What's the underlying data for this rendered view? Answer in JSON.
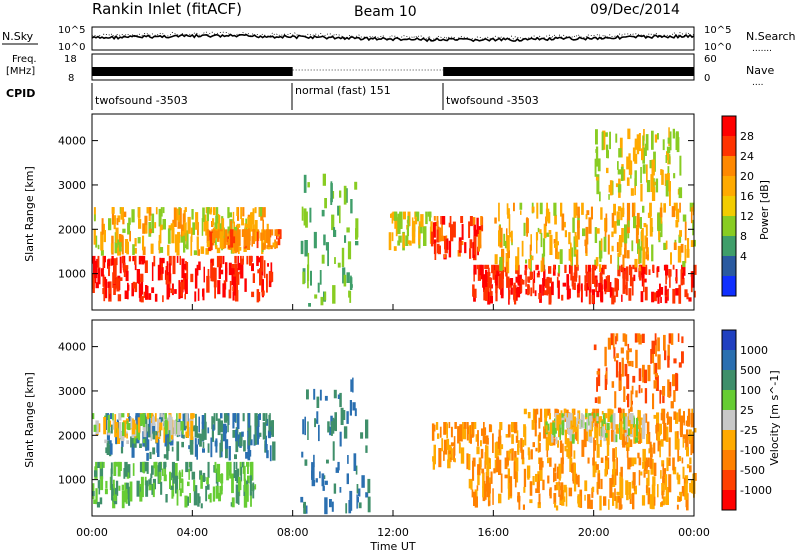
{
  "header": {
    "station": "Rankin Inlet (fitACF)",
    "beam": "Beam 10",
    "date": "09/Dec/2014"
  },
  "summary": {
    "nsky_label": "N.Sky",
    "nsearch_label": "N.Search",
    "nsearch_legend": ".......",
    "freq_label_line1": "Freq.",
    "freq_label_line2": "[MHz]",
    "nave_label": "Nave",
    "nave_legend": "....",
    "cpid_label": "CPID",
    "noise_ticks": [
      "10^5",
      "10^0"
    ],
    "noise_ticks_right": [
      "10^5",
      "10^0"
    ],
    "freq_ticks": [
      "18",
      "8"
    ],
    "nave_ticks": [
      "60",
      "0"
    ],
    "cpid_segments": [
      {
        "label": "twofsound -3503",
        "start_h": 0,
        "end_h": 8
      },
      {
        "label": "normal (fast) 151",
        "start_h": 8,
        "end_h": 14
      },
      {
        "label": "twofsound -3503",
        "start_h": 14,
        "end_h": 24
      }
    ]
  },
  "axes": {
    "ylabel": "Slant Range [km]",
    "xlabel": "Time UT",
    "yticks": [
      "1000",
      "2000",
      "3000",
      "4000"
    ],
    "xticks": [
      "00:00",
      "04:00",
      "08:00",
      "12:00",
      "16:00",
      "20:00",
      "00:00"
    ]
  },
  "power_colorbar": {
    "label": "Power [dB]",
    "ticks": [
      "28",
      "24",
      "20",
      "16",
      "12",
      "8",
      "4"
    ],
    "colors": [
      "#ff0000",
      "#ff3300",
      "#ff8800",
      "#ffaa00",
      "#f2cc00",
      "#88cc22",
      "#3f9e6a",
      "#2a5aa0",
      "#1030ff"
    ]
  },
  "velocity_colorbar": {
    "label": "Velocity [m s^-1]",
    "ticks": [
      "1000",
      "500",
      "100",
      "25",
      "-25",
      "-100",
      "-500",
      "-1000"
    ],
    "colors": [
      "#2040c0",
      "#2a6fb0",
      "#3f8f6a",
      "#66cc33",
      "#c8c8c8",
      "#ffaa00",
      "#ff8000",
      "#ff4000",
      "#ff0000"
    ]
  },
  "chart_data": [
    {
      "type": "heatmap",
      "title": "Power",
      "x_range_h": [
        0,
        24
      ],
      "ylim": [
        180,
        4600
      ],
      "regions": [
        {
          "t0": 0,
          "t1": 7.2,
          "r0": 350,
          "r1": 1400,
          "value_db": 28
        },
        {
          "t0": 0,
          "t1": 7.0,
          "r0": 1400,
          "r1": 2500,
          "value_db": 18
        },
        {
          "t0": 4.5,
          "t1": 7.5,
          "r0": 1500,
          "r1": 2000,
          "value_db": 22
        },
        {
          "t0": 8.3,
          "t1": 10.5,
          "r0": 200,
          "r1": 3300,
          "value_db": 12
        },
        {
          "t0": 11.8,
          "t1": 13.5,
          "r0": 1500,
          "r1": 2400,
          "value_db": 16
        },
        {
          "t0": 13.5,
          "t1": 15.5,
          "r0": 1300,
          "r1": 2300,
          "value_db": 26
        },
        {
          "t0": 15,
          "t1": 24,
          "r0": 300,
          "r1": 1200,
          "value_db": 28
        },
        {
          "t0": 16,
          "t1": 24,
          "r0": 1000,
          "r1": 2600,
          "value_db": 18
        },
        {
          "t0": 20,
          "t1": 23.5,
          "r0": 2500,
          "r1": 4300,
          "value_db": 16
        }
      ]
    },
    {
      "type": "heatmap",
      "title": "Velocity",
      "x_range_h": [
        0,
        24
      ],
      "ylim": [
        180,
        4600
      ],
      "regions": [
        {
          "t0": 0,
          "t1": 6.5,
          "r0": 350,
          "r1": 1400,
          "value_ms": 100
        },
        {
          "t0": 0.5,
          "t1": 7.2,
          "r0": 1400,
          "r1": 2500,
          "value_ms": 500
        },
        {
          "t0": 0,
          "t1": 4,
          "r0": 1800,
          "r1": 2500,
          "value_ms": 0
        },
        {
          "t0": 8.3,
          "t1": 11.0,
          "r0": 200,
          "r1": 3300,
          "value_ms": 500
        },
        {
          "t0": 13.5,
          "t1": 17.0,
          "r0": 1200,
          "r1": 2300,
          "value_ms": -100
        },
        {
          "t0": 15,
          "t1": 24,
          "r0": 300,
          "r1": 1500,
          "value_ms": -100
        },
        {
          "t0": 17,
          "t1": 24,
          "r0": 1400,
          "r1": 2600,
          "value_ms": -100
        },
        {
          "t0": 18,
          "t1": 22,
          "r0": 1800,
          "r1": 2500,
          "value_ms": 0
        },
        {
          "t0": 20,
          "t1": 23.5,
          "r0": 2500,
          "r1": 4300,
          "value_ms": -500
        }
      ]
    }
  ]
}
